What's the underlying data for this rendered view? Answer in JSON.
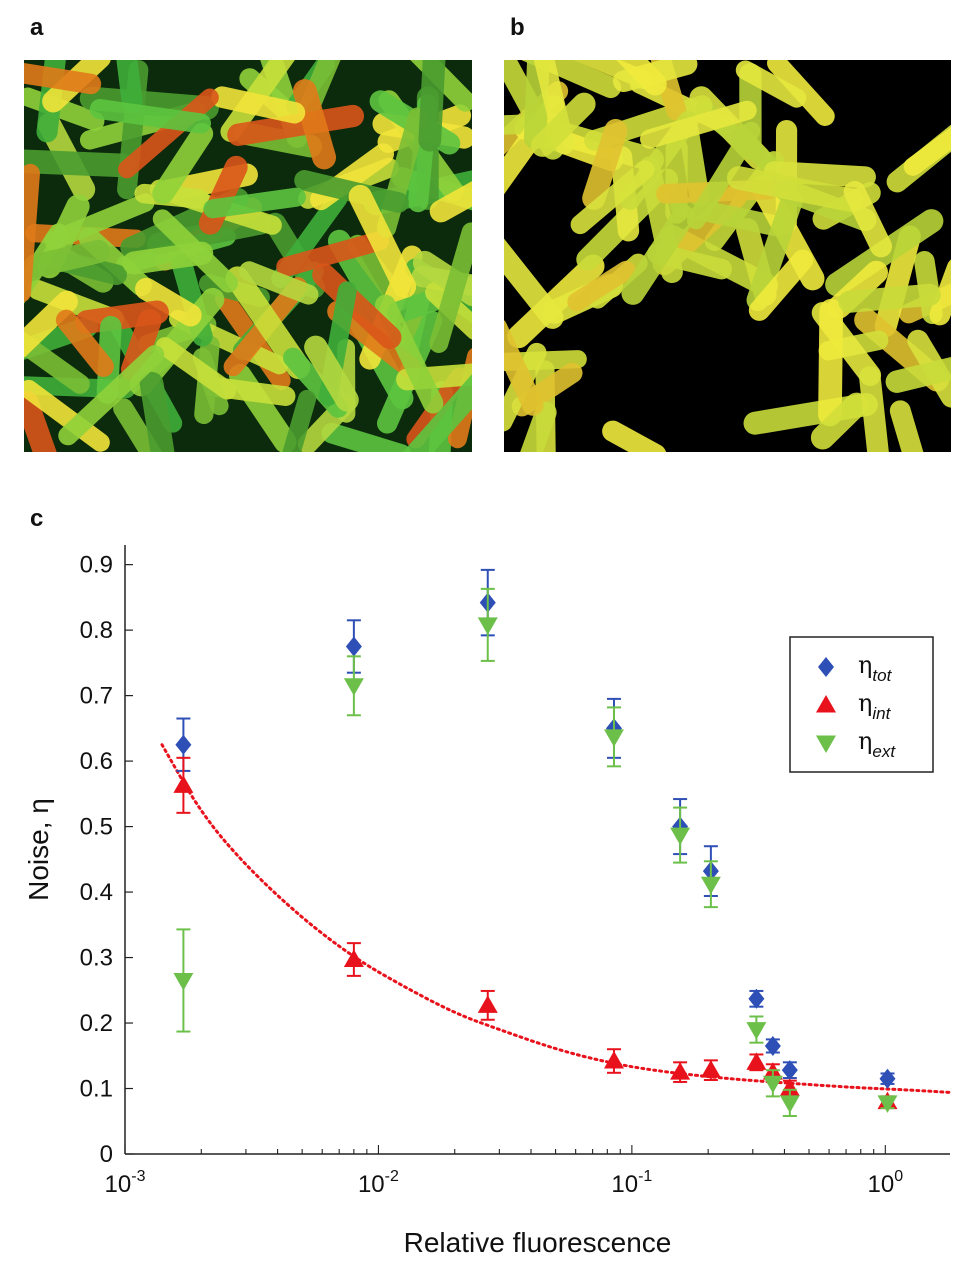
{
  "panels": {
    "a": {
      "label": "a"
    },
    "b": {
      "label": "b"
    },
    "c": {
      "label": "c"
    }
  },
  "colors": {
    "tot": "#2e4fb6",
    "int": "#e8121c",
    "ext": "#6cc04a",
    "fit": "#e8121c",
    "microscopy_a_background": "#0a2a0a",
    "microscopy_b_background": "#000000"
  },
  "chart_data": {
    "type": "scatter",
    "xlabel": "Relative fluorescence",
    "ylabel": "Noise, η",
    "xscale": "log",
    "xlim": [
      0.001,
      1.8
    ],
    "ylim": [
      0,
      0.93
    ],
    "x_ticks": [
      0.001,
      0.01,
      0.1,
      1
    ],
    "x_tick_labels": [
      {
        "base": "10",
        "exp": "-3"
      },
      {
        "base": "10",
        "exp": "-2"
      },
      {
        "base": "10",
        "exp": "-1"
      },
      {
        "base": "10",
        "exp": "0"
      }
    ],
    "y_ticks": [
      0,
      0.1,
      0.2,
      0.3,
      0.4,
      0.5,
      0.6,
      0.7,
      0.8,
      0.9
    ],
    "y_tick_labels": [
      "0",
      "0.1",
      "0.2",
      "0.3",
      "0.4",
      "0.5",
      "0.6",
      "0.7",
      "0.8",
      "0.9"
    ],
    "grid": false,
    "legend_position": "top-right",
    "series": [
      {
        "name": "η",
        "subscript": "tot",
        "marker": "diamond",
        "color": "#2e4fb6",
        "points": [
          {
            "x": 0.0017,
            "y": 0.625,
            "err": 0.04
          },
          {
            "x": 0.008,
            "y": 0.775,
            "err": 0.04
          },
          {
            "x": 0.027,
            "y": 0.842,
            "err": 0.05
          },
          {
            "x": 0.085,
            "y": 0.65,
            "err": 0.045
          },
          {
            "x": 0.155,
            "y": 0.5,
            "err": 0.042
          },
          {
            "x": 0.205,
            "y": 0.432,
            "err": 0.038
          },
          {
            "x": 0.31,
            "y": 0.237,
            "err": 0.012
          },
          {
            "x": 0.36,
            "y": 0.165,
            "err": 0.01
          },
          {
            "x": 0.42,
            "y": 0.128,
            "err": 0.012
          },
          {
            "x": 1.02,
            "y": 0.115,
            "err": 0.008
          }
        ]
      },
      {
        "name": "η",
        "subscript": "int",
        "marker": "triangle-up",
        "color": "#e8121c",
        "points": [
          {
            "x": 0.0017,
            "y": 0.563,
            "err": 0.042
          },
          {
            "x": 0.008,
            "y": 0.297,
            "err": 0.025
          },
          {
            "x": 0.027,
            "y": 0.227,
            "err": 0.022
          },
          {
            "x": 0.085,
            "y": 0.142,
            "err": 0.018
          },
          {
            "x": 0.155,
            "y": 0.125,
            "err": 0.015
          },
          {
            "x": 0.205,
            "y": 0.128,
            "err": 0.015
          },
          {
            "x": 0.31,
            "y": 0.14,
            "err": 0.012
          },
          {
            "x": 0.36,
            "y": 0.125,
            "err": 0.012
          },
          {
            "x": 0.42,
            "y": 0.1,
            "err": 0.012
          },
          {
            "x": 1.02,
            "y": 0.08,
            "err": 0.008
          }
        ]
      },
      {
        "name": "η",
        "subscript": "ext",
        "marker": "triangle-down",
        "color": "#6cc04a",
        "points": [
          {
            "x": 0.0017,
            "y": 0.265,
            "err": 0.078
          },
          {
            "x": 0.008,
            "y": 0.715,
            "err": 0.045
          },
          {
            "x": 0.027,
            "y": 0.808,
            "err": 0.055
          },
          {
            "x": 0.085,
            "y": 0.637,
            "err": 0.045
          },
          {
            "x": 0.155,
            "y": 0.487,
            "err": 0.042
          },
          {
            "x": 0.205,
            "y": 0.412,
            "err": 0.035
          },
          {
            "x": 0.31,
            "y": 0.19,
            "err": 0.02
          },
          {
            "x": 0.36,
            "y": 0.108,
            "err": 0.02
          },
          {
            "x": 0.42,
            "y": 0.078,
            "err": 0.02
          },
          {
            "x": 1.02,
            "y": 0.078,
            "err": 0.008
          }
        ]
      }
    ],
    "fit_curve": {
      "style": "dotted",
      "color": "#e8121c",
      "points": [
        {
          "x": 0.0014,
          "y": 0.625
        },
        {
          "x": 0.002,
          "y": 0.52
        },
        {
          "x": 0.003,
          "y": 0.44
        },
        {
          "x": 0.005,
          "y": 0.36
        },
        {
          "x": 0.008,
          "y": 0.3
        },
        {
          "x": 0.012,
          "y": 0.26
        },
        {
          "x": 0.02,
          "y": 0.215
        },
        {
          "x": 0.03,
          "y": 0.19
        },
        {
          "x": 0.05,
          "y": 0.16
        },
        {
          "x": 0.08,
          "y": 0.14
        },
        {
          "x": 0.12,
          "y": 0.128
        },
        {
          "x": 0.2,
          "y": 0.118
        },
        {
          "x": 0.3,
          "y": 0.112
        },
        {
          "x": 0.5,
          "y": 0.106
        },
        {
          "x": 0.8,
          "y": 0.101
        },
        {
          "x": 1.2,
          "y": 0.098
        },
        {
          "x": 1.8,
          "y": 0.094
        }
      ]
    }
  }
}
